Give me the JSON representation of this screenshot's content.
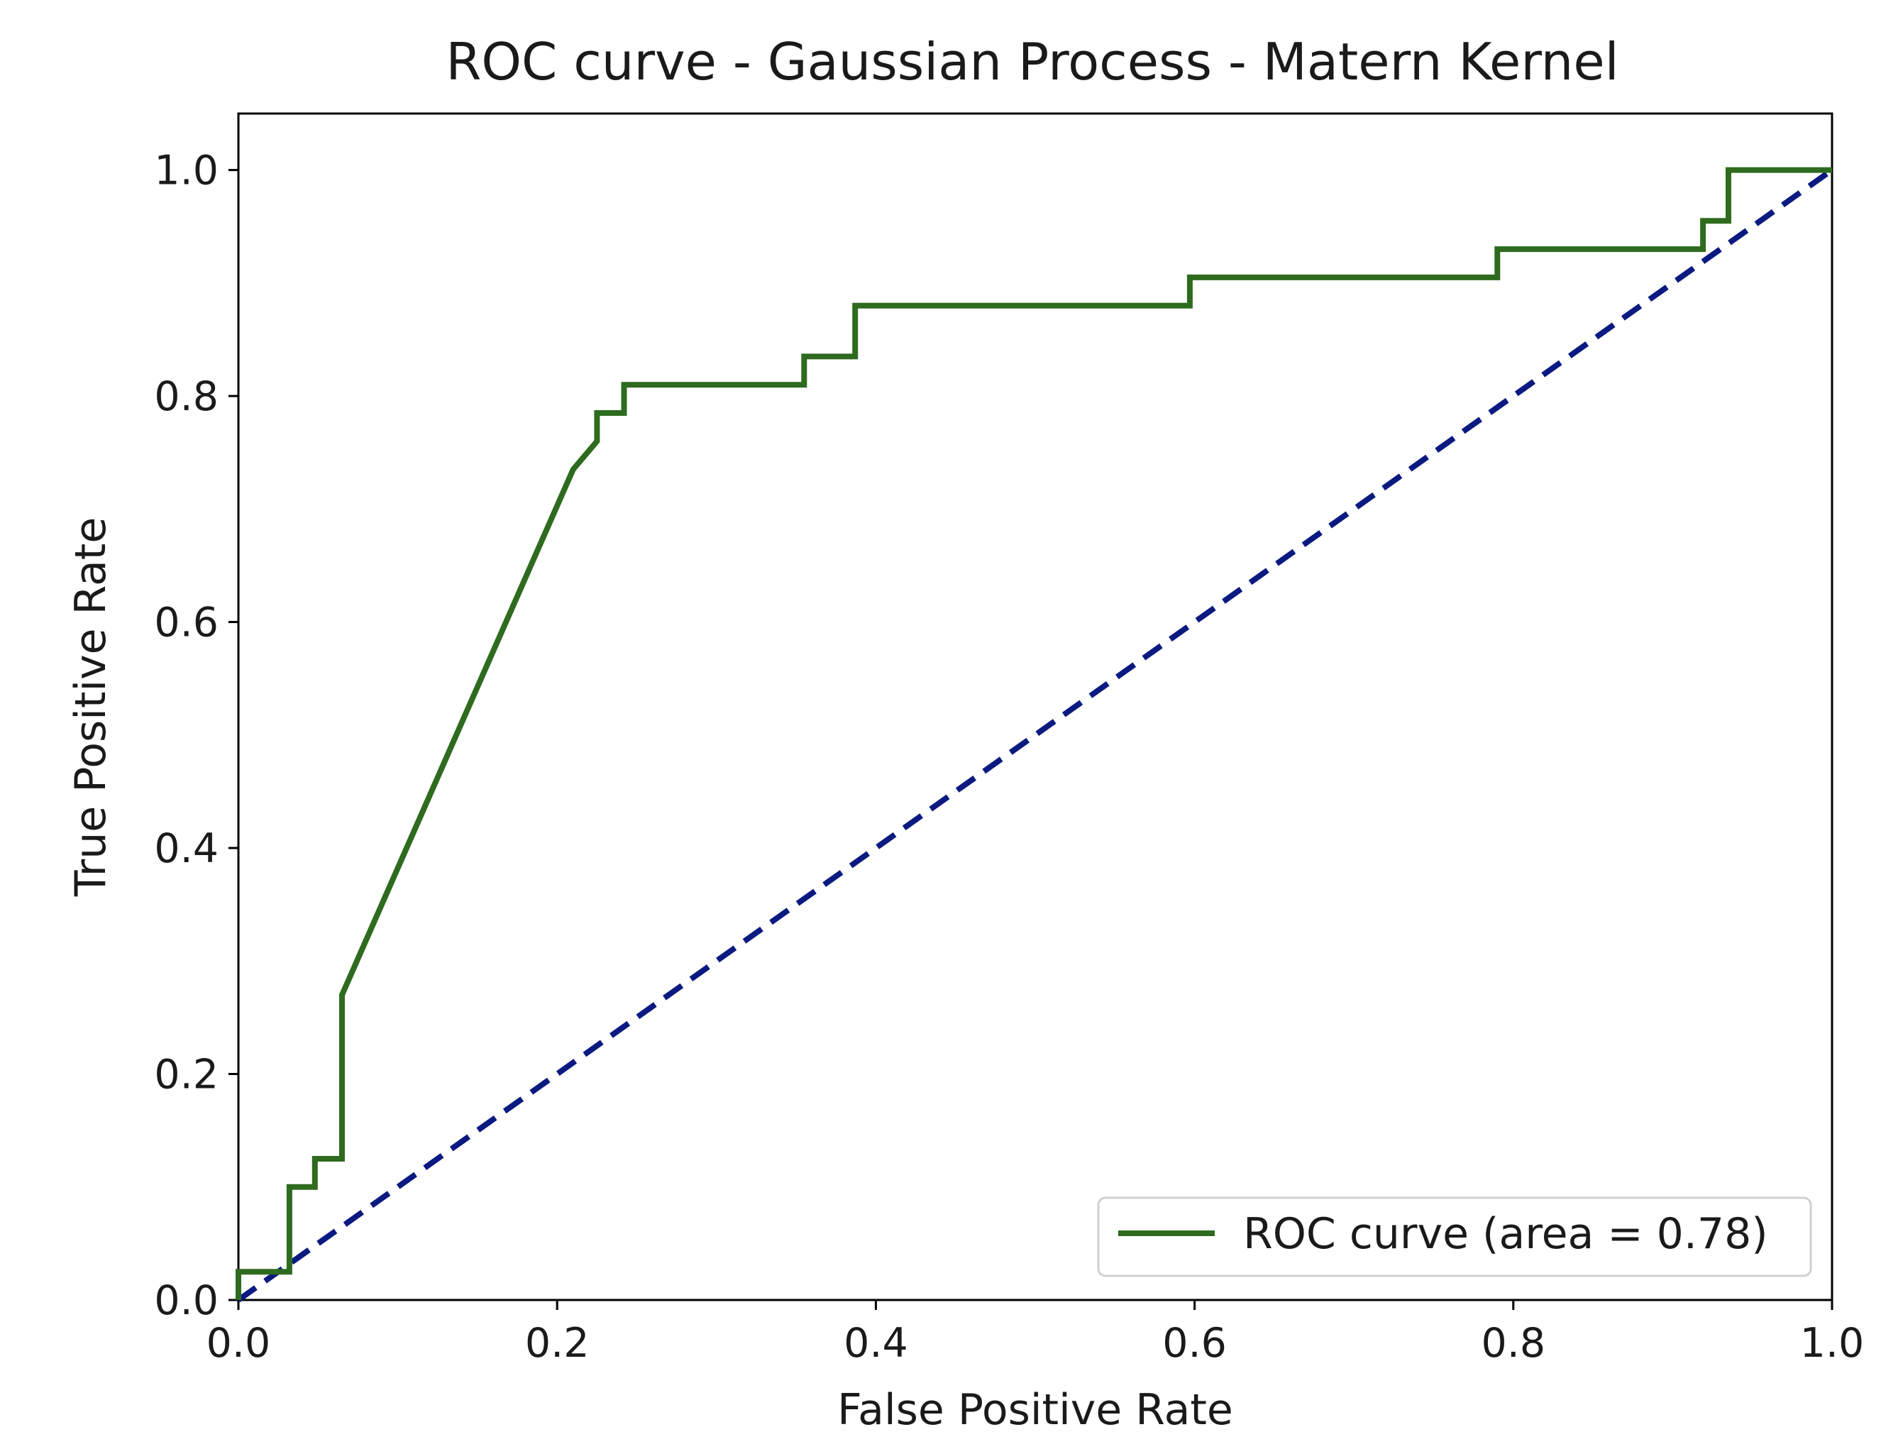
{
  "chart_data": {
    "type": "line",
    "title": "ROC curve - Gaussian Process - Matern Kernel",
    "xlabel": "False Positive Rate",
    "ylabel": "True Positive Rate",
    "xlim": [
      0.0,
      1.0
    ],
    "ylim": [
      0.0,
      1.05
    ],
    "xticks": [
      0.0,
      0.2,
      0.4,
      0.6,
      0.8,
      1.0
    ],
    "xtick_labels": [
      "0.0",
      "0.2",
      "0.4",
      "0.6",
      "0.8",
      "1.0"
    ],
    "yticks": [
      0.0,
      0.2,
      0.4,
      0.6,
      0.8,
      1.0
    ],
    "ytick_labels": [
      "0.0",
      "0.2",
      "0.4",
      "0.6",
      "0.8",
      "1.0"
    ],
    "grid": false,
    "legend_position": "bottom-right",
    "series": [
      {
        "name": "ROC curve (area = 0.78)",
        "color": "#2e6b1e",
        "style": "solid",
        "x": [
          0.0,
          0.0,
          0.032,
          0.032,
          0.048,
          0.048,
          0.065,
          0.065,
          0.21,
          0.225,
          0.225,
          0.242,
          0.242,
          0.355,
          0.355,
          0.387,
          0.387,
          0.597,
          0.597,
          0.79,
          0.79,
          0.919,
          0.919,
          0.935,
          0.935,
          1.0
        ],
        "y": [
          0.0,
          0.025,
          0.025,
          0.1,
          0.1,
          0.125,
          0.125,
          0.27,
          0.735,
          0.76,
          0.785,
          0.785,
          0.81,
          0.81,
          0.835,
          0.835,
          0.88,
          0.88,
          0.905,
          0.905,
          0.93,
          0.93,
          0.955,
          0.955,
          1.0,
          1.0
        ]
      },
      {
        "color": "#0b1a80",
        "style": "dashed",
        "x": [
          0.0,
          1.0
        ],
        "y": [
          0.0,
          1.0
        ]
      }
    ]
  }
}
